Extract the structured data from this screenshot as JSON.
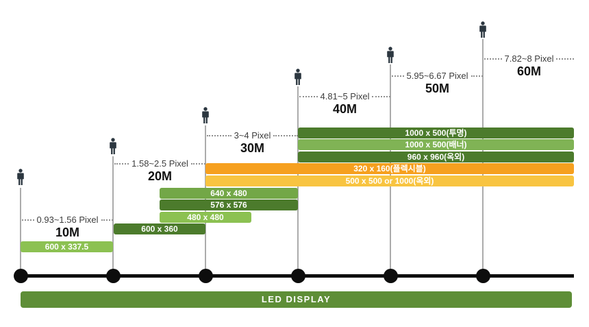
{
  "diagram": {
    "footer_label": "LED DISPLAY",
    "markers": [
      {
        "distance": "10M",
        "pixel_range": "0.93~1.56 Pixel"
      },
      {
        "distance": "20M",
        "pixel_range": "1.58~2.5 Pixel"
      },
      {
        "distance": "30M",
        "pixel_range": "3~4 Pixel"
      },
      {
        "distance": "40M",
        "pixel_range": "4.81~5 Pixel"
      },
      {
        "distance": "50M",
        "pixel_range": "5.95~6.67 Pixel"
      },
      {
        "distance": "60M",
        "pixel_range": "7.82~8 Pixel"
      }
    ],
    "bars": [
      {
        "id": "b1000tm",
        "label": "1000 x 500(투명)",
        "color": "dark_green"
      },
      {
        "id": "b1000bn",
        "label": "1000 x 500(배너)",
        "color": "banner_green"
      },
      {
        "id": "b960",
        "label": "960 x 960(옥외)",
        "color": "dark_green"
      },
      {
        "id": "b320",
        "label": "320 x 160(플렉시블)",
        "color": "orange"
      },
      {
        "id": "b500",
        "label": "500 x 500 or 1000(옥외)",
        "color": "yellow"
      },
      {
        "id": "b640",
        "label": "640 x 480",
        "color": "mid_green"
      },
      {
        "id": "b576",
        "label": "576 x 576",
        "color": "dark_green"
      },
      {
        "id": "b480",
        "label": "480 x 480",
        "color": "light_green"
      },
      {
        "id": "b600360",
        "label": "600 x 360",
        "color": "dark_green"
      },
      {
        "id": "b600337",
        "label": "600 x 337.5",
        "color": "light_green"
      }
    ],
    "colors": {
      "dark_green": "#4C7B2C",
      "mid_green": "#73A747",
      "banner_green": "#80B355",
      "light_green": "#8CC152",
      "orange": "#F6A01F",
      "yellow": "#F8C441",
      "footer_green": "#5E8E37",
      "person": "#2C3740",
      "timeline": "#0D0D0D",
      "guide_line": "#ABABAB"
    }
  }
}
